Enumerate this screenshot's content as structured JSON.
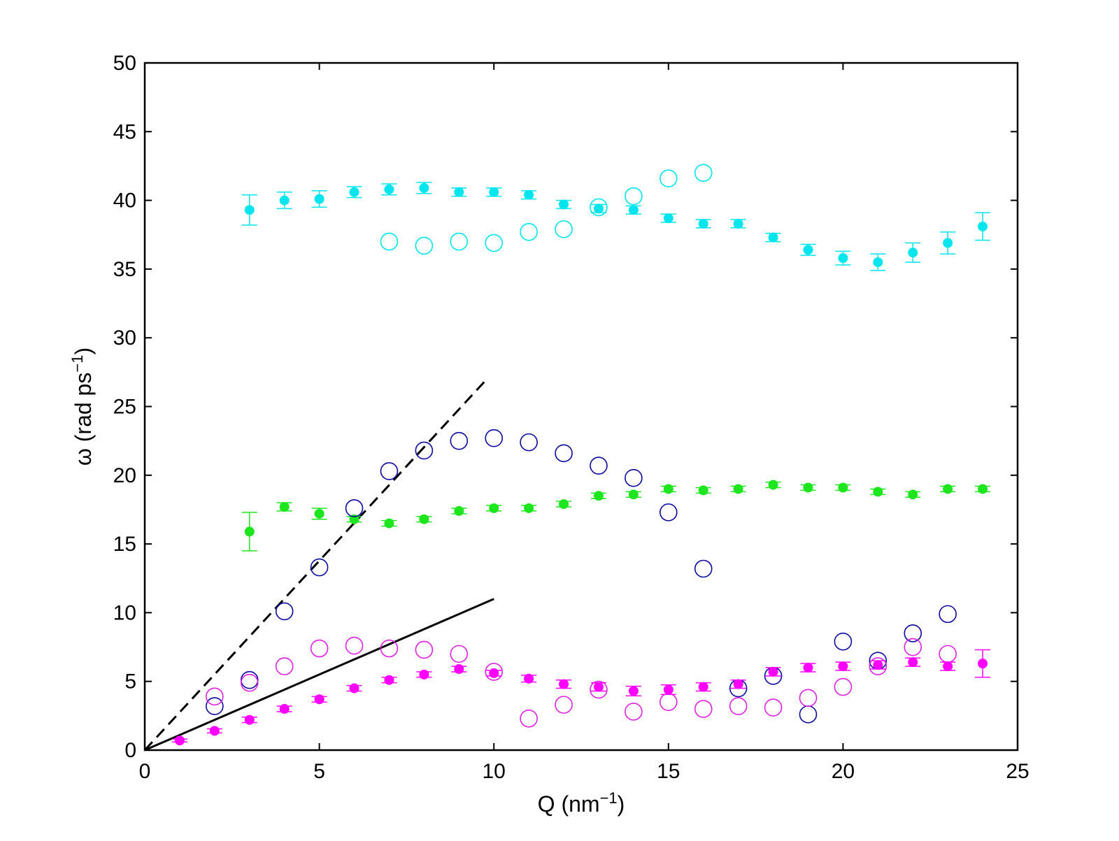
{
  "chart_data": {
    "type": "scatter",
    "title": "",
    "xlabel": "Q (nm",
    "xlabel_sup": "−1",
    "xlabel_end": ")",
    "ylabel": "ω (rad ps",
    "ylabel_sup": "−1",
    "ylabel_end": ")",
    "xlim": [
      0,
      25
    ],
    "ylim": [
      0,
      50
    ],
    "xticks": [
      0,
      5,
      10,
      15,
      20,
      25
    ],
    "yticks": [
      0,
      5,
      10,
      15,
      20,
      25,
      30,
      35,
      40,
      45,
      50
    ],
    "grid": false,
    "series": [
      {
        "name": "cyan-filled",
        "marker": "filled-circle",
        "color": "#00e5ee",
        "x": [
          3,
          4,
          5,
          6,
          7,
          8,
          9,
          10,
          11,
          12,
          13,
          14,
          15,
          16,
          17,
          18,
          19,
          20,
          21,
          22,
          23,
          24
        ],
        "y": [
          39.3,
          40.0,
          40.1,
          40.6,
          40.8,
          40.9,
          40.6,
          40.6,
          40.4,
          39.7,
          39.4,
          39.3,
          38.7,
          38.3,
          38.3,
          37.3,
          36.4,
          35.8,
          35.5,
          36.2,
          36.9,
          38.1
        ],
        "err": [
          1.1,
          0.6,
          0.6,
          0.4,
          0.4,
          0.4,
          0.3,
          0.3,
          0.3,
          0.3,
          0.3,
          0.3,
          0.3,
          0.3,
          0.3,
          0.3,
          0.4,
          0.5,
          0.6,
          0.7,
          0.8,
          1.0
        ]
      },
      {
        "name": "cyan-open",
        "marker": "open-circle",
        "color": "#00e5ee",
        "x": [
          7,
          8,
          9,
          10,
          11,
          12,
          13,
          14,
          15,
          16
        ],
        "y": [
          37.0,
          36.7,
          37.0,
          36.9,
          37.7,
          37.9,
          39.5,
          40.3,
          41.6,
          42.0
        ]
      },
      {
        "name": "green-filled",
        "marker": "filled-circle",
        "color": "#1ee61e",
        "x": [
          3,
          4,
          5,
          6,
          7,
          8,
          9,
          10,
          11,
          12,
          13,
          14,
          15,
          16,
          17,
          18,
          19,
          20,
          21,
          22,
          23,
          24
        ],
        "y": [
          15.9,
          17.7,
          17.2,
          16.8,
          16.5,
          16.8,
          17.4,
          17.6,
          17.6,
          17.9,
          18.5,
          18.6,
          19.0,
          18.9,
          19.0,
          19.3,
          19.1,
          19.1,
          18.8,
          18.6,
          19.0,
          19.0
        ],
        "err": [
          1.4,
          0.3,
          0.4,
          0.2,
          0.2,
          0.2,
          0.2,
          0.2,
          0.2,
          0.2,
          0.2,
          0.2,
          0.2,
          0.2,
          0.2,
          0.2,
          0.2,
          0.2,
          0.2,
          0.2,
          0.2,
          0.2
        ]
      },
      {
        "name": "blue-open",
        "marker": "open-circle",
        "color": "#0a0aa0",
        "x": [
          2,
          3,
          4,
          5,
          6,
          7,
          8,
          9,
          10,
          11,
          12,
          13,
          14,
          15,
          16,
          17,
          18,
          19,
          20,
          21,
          22,
          23
        ],
        "y": [
          3.2,
          5.1,
          10.1,
          13.3,
          17.6,
          20.3,
          21.8,
          22.5,
          22.7,
          22.4,
          21.6,
          20.7,
          19.8,
          17.3,
          13.2,
          4.5,
          5.4,
          2.6,
          7.9,
          6.5,
          8.5,
          9.9
        ]
      },
      {
        "name": "magenta-open",
        "marker": "open-circle",
        "color": "#e020e0",
        "x": [
          2,
          3,
          4,
          5,
          6,
          7,
          8,
          9,
          10,
          11,
          12,
          13,
          14,
          15,
          16,
          17,
          18,
          19,
          20,
          21,
          22,
          23
        ],
        "y": [
          3.9,
          4.9,
          6.1,
          7.4,
          7.6,
          7.4,
          7.3,
          7.0,
          5.7,
          2.3,
          3.3,
          4.4,
          2.8,
          3.5,
          3.0,
          3.2,
          3.1,
          3.8,
          4.6,
          6.1,
          7.5,
          7.0
        ]
      },
      {
        "name": "magenta-filled",
        "marker": "filled-circle",
        "color": "#ff00ff",
        "x": [
          1,
          2,
          3,
          4,
          5,
          6,
          7,
          8,
          9,
          10,
          11,
          12,
          13,
          14,
          15,
          16,
          17,
          18,
          19,
          20,
          21,
          22,
          23,
          24
        ],
        "y": [
          0.7,
          1.4,
          2.2,
          3.0,
          3.7,
          4.5,
          5.1,
          5.5,
          5.9,
          5.6,
          5.2,
          4.8,
          4.6,
          4.3,
          4.4,
          4.6,
          4.8,
          5.7,
          6.0,
          6.1,
          6.2,
          6.4,
          6.1,
          6.3
        ],
        "err": [
          0.1,
          0.15,
          0.2,
          0.2,
          0.2,
          0.2,
          0.2,
          0.2,
          0.2,
          0.2,
          0.25,
          0.3,
          0.3,
          0.35,
          0.35,
          0.3,
          0.3,
          0.3,
          0.3,
          0.3,
          0.3,
          0.3,
          0.3,
          1.0
        ]
      }
    ],
    "lines": [
      {
        "name": "dashed-line",
        "style": "dashed",
        "color": "#000000",
        "x": [
          0,
          9.8
        ],
        "y": [
          0,
          27.0
        ]
      },
      {
        "name": "solid-line",
        "style": "solid",
        "color": "#000000",
        "x": [
          0,
          10
        ],
        "y": [
          0,
          11.0
        ]
      }
    ]
  }
}
